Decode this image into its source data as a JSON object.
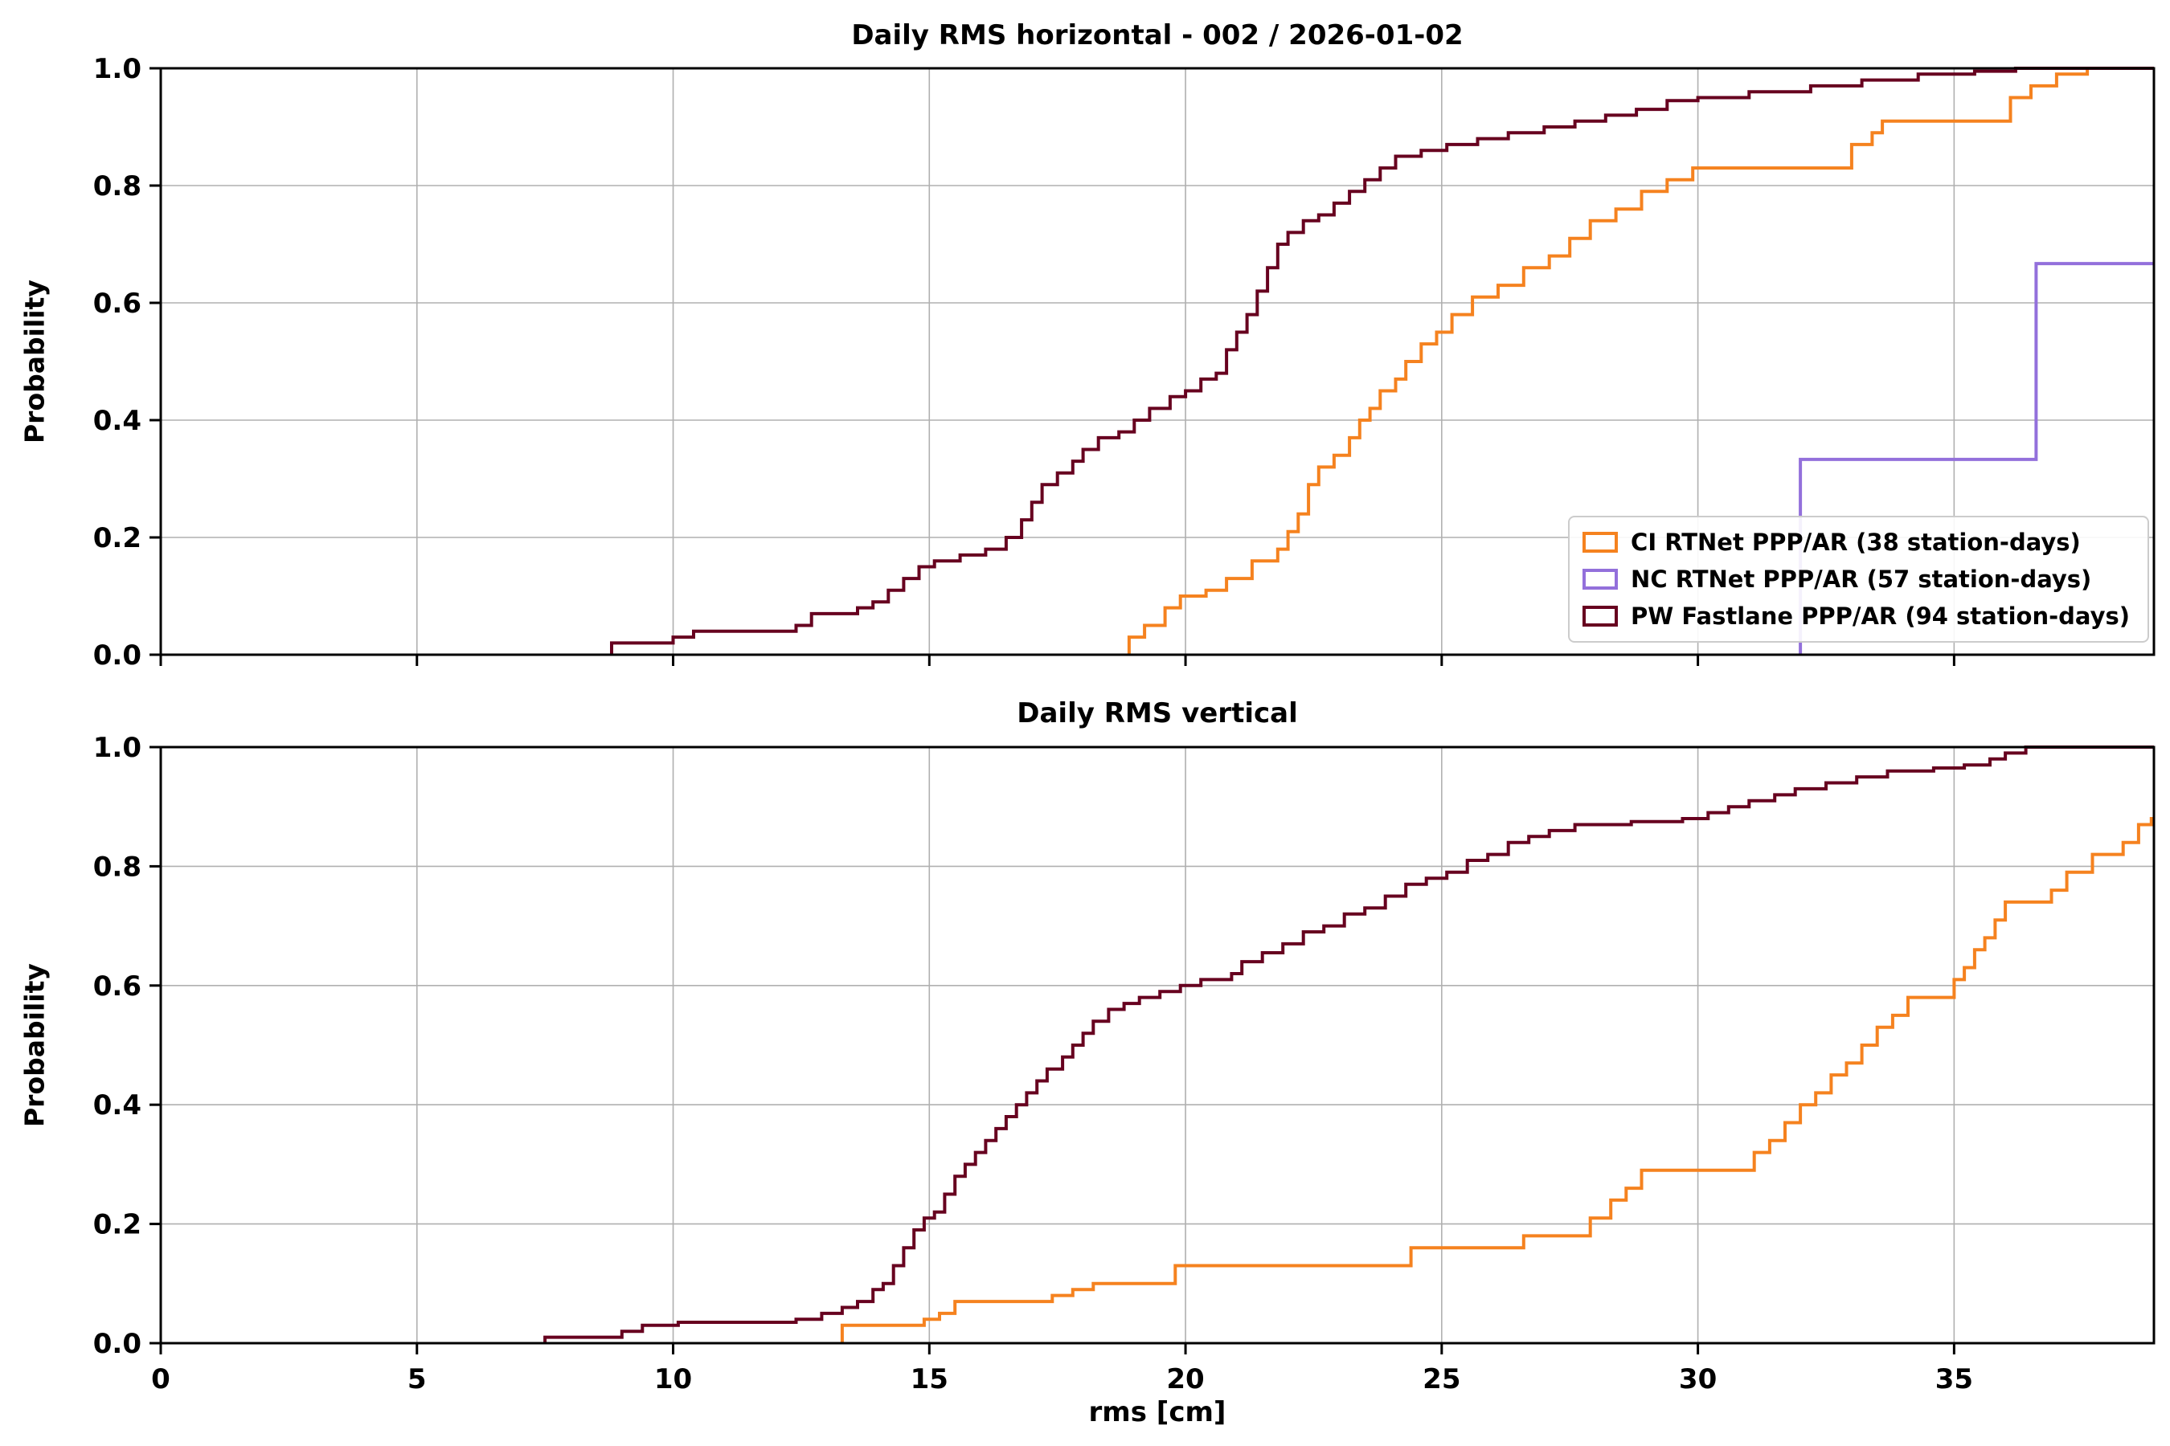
{
  "figure": {
    "background": "#ffffff",
    "grid_color": "#b0b0b0",
    "spine_color": "#000000"
  },
  "chart_data": [
    {
      "type": "line",
      "subtype": "ecdf-step",
      "title": "Daily RMS horizontal - 002  / 2026-01-02",
      "ylabel": "Probability",
      "xlabel": "",
      "xlim": [
        0,
        38.9
      ],
      "ylim": [
        0,
        1.0
      ],
      "xticks": [
        0,
        5,
        10,
        15,
        20,
        25,
        30,
        35
      ],
      "xtick_labels": [],
      "yticks": [
        0,
        0.2,
        0.4,
        0.6,
        0.8,
        1.0
      ],
      "ytick_labels": [
        "0.0",
        "0.2",
        "0.4",
        "0.6",
        "0.8",
        "1.0"
      ],
      "grid": true,
      "legend": {
        "position": "lower right",
        "entries": [
          {
            "label": "CI RTNet PPP/AR (38 station-days)",
            "color": "#f5821f"
          },
          {
            "label": "NC RTNet PPP/AR (57 station-days)",
            "color": "#9370db"
          },
          {
            "label": "PW Fastlane PPP/AR (94 station-days)",
            "color": "#67001f"
          }
        ]
      },
      "series": [
        {
          "name": "CI RTNet PPP/AR (38 station-days)",
          "color": "#f5821f",
          "points": [
            [
              18.9,
              0.03
            ],
            [
              19.2,
              0.05
            ],
            [
              19.6,
              0.08
            ],
            [
              19.9,
              0.1
            ],
            [
              20.4,
              0.11
            ],
            [
              20.8,
              0.13
            ],
            [
              21.3,
              0.16
            ],
            [
              21.8,
              0.18
            ],
            [
              22.0,
              0.21
            ],
            [
              22.2,
              0.24
            ],
            [
              22.4,
              0.29
            ],
            [
              22.6,
              0.32
            ],
            [
              22.9,
              0.34
            ],
            [
              23.2,
              0.37
            ],
            [
              23.4,
              0.4
            ],
            [
              23.6,
              0.42
            ],
            [
              23.8,
              0.45
            ],
            [
              24.1,
              0.47
            ],
            [
              24.3,
              0.5
            ],
            [
              24.6,
              0.53
            ],
            [
              24.9,
              0.55
            ],
            [
              25.2,
              0.58
            ],
            [
              25.6,
              0.61
            ],
            [
              26.1,
              0.63
            ],
            [
              26.6,
              0.66
            ],
            [
              27.1,
              0.68
            ],
            [
              27.5,
              0.71
            ],
            [
              27.9,
              0.74
            ],
            [
              28.4,
              0.76
            ],
            [
              28.9,
              0.79
            ],
            [
              29.4,
              0.81
            ],
            [
              29.9,
              0.83
            ],
            [
              33.0,
              0.87
            ],
            [
              33.4,
              0.89
            ],
            [
              33.6,
              0.91
            ],
            [
              36.1,
              0.95
            ],
            [
              36.5,
              0.97
            ],
            [
              37.0,
              0.99
            ],
            [
              37.6,
              1.0
            ]
          ]
        },
        {
          "name": "NC RTNet PPP/AR (57 station-days)",
          "color": "#9370db",
          "points": [
            [
              32.0,
              0.333
            ],
            [
              36.6,
              0.667
            ]
          ]
        },
        {
          "name": "PW Fastlane PPP/AR (94 station-days)",
          "color": "#67001f",
          "points": [
            [
              8.8,
              0.02
            ],
            [
              10.0,
              0.03
            ],
            [
              10.4,
              0.04
            ],
            [
              12.4,
              0.05
            ],
            [
              12.7,
              0.07
            ],
            [
              13.6,
              0.08
            ],
            [
              13.9,
              0.09
            ],
            [
              14.2,
              0.11
            ],
            [
              14.5,
              0.13
            ],
            [
              14.8,
              0.15
            ],
            [
              15.1,
              0.16
            ],
            [
              15.6,
              0.17
            ],
            [
              16.1,
              0.18
            ],
            [
              16.5,
              0.2
            ],
            [
              16.8,
              0.23
            ],
            [
              17.0,
              0.26
            ],
            [
              17.2,
              0.29
            ],
            [
              17.5,
              0.31
            ],
            [
              17.8,
              0.33
            ],
            [
              18.0,
              0.35
            ],
            [
              18.3,
              0.37
            ],
            [
              18.7,
              0.38
            ],
            [
              19.0,
              0.4
            ],
            [
              19.3,
              0.42
            ],
            [
              19.7,
              0.44
            ],
            [
              20.0,
              0.45
            ],
            [
              20.3,
              0.47
            ],
            [
              20.6,
              0.48
            ],
            [
              20.8,
              0.52
            ],
            [
              21.0,
              0.55
            ],
            [
              21.2,
              0.58
            ],
            [
              21.4,
              0.62
            ],
            [
              21.6,
              0.66
            ],
            [
              21.8,
              0.7
            ],
            [
              22.0,
              0.72
            ],
            [
              22.3,
              0.74
            ],
            [
              22.6,
              0.75
            ],
            [
              22.9,
              0.77
            ],
            [
              23.2,
              0.79
            ],
            [
              23.5,
              0.81
            ],
            [
              23.8,
              0.83
            ],
            [
              24.1,
              0.85
            ],
            [
              24.6,
              0.86
            ],
            [
              25.1,
              0.87
            ],
            [
              25.7,
              0.88
            ],
            [
              26.3,
              0.89
            ],
            [
              27.0,
              0.9
            ],
            [
              27.6,
              0.91
            ],
            [
              28.2,
              0.92
            ],
            [
              28.8,
              0.93
            ],
            [
              29.4,
              0.945
            ],
            [
              30.0,
              0.95
            ],
            [
              31.0,
              0.96
            ],
            [
              32.2,
              0.97
            ],
            [
              33.2,
              0.98
            ],
            [
              34.3,
              0.99
            ],
            [
              35.4,
              0.995
            ],
            [
              36.2,
              1.0
            ]
          ]
        }
      ]
    },
    {
      "type": "line",
      "subtype": "ecdf-step",
      "title": "Daily RMS vertical",
      "ylabel": "Probability",
      "xlabel": "rms [cm]",
      "xlim": [
        0,
        38.9
      ],
      "ylim": [
        0,
        1.0
      ],
      "xticks": [
        0,
        5,
        10,
        15,
        20,
        25,
        30,
        35
      ],
      "xtick_labels": [
        "0",
        "5",
        "10",
        "15",
        "20",
        "25",
        "30",
        "35"
      ],
      "yticks": [
        0,
        0.2,
        0.4,
        0.6,
        0.8,
        1.0
      ],
      "ytick_labels": [
        "0.0",
        "0.2",
        "0.4",
        "0.6",
        "0.8",
        "1.0"
      ],
      "grid": true,
      "series": [
        {
          "name": "CI RTNet PPP/AR (38 station-days)",
          "color": "#f5821f",
          "points": [
            [
              13.3,
              0.03
            ],
            [
              14.9,
              0.04
            ],
            [
              15.2,
              0.05
            ],
            [
              15.5,
              0.07
            ],
            [
              17.4,
              0.08
            ],
            [
              17.8,
              0.09
            ],
            [
              18.2,
              0.1
            ],
            [
              19.8,
              0.13
            ],
            [
              24.4,
              0.16
            ],
            [
              26.6,
              0.18
            ],
            [
              27.9,
              0.21
            ],
            [
              28.3,
              0.24
            ],
            [
              28.6,
              0.26
            ],
            [
              28.9,
              0.29
            ],
            [
              31.1,
              0.32
            ],
            [
              31.4,
              0.34
            ],
            [
              31.7,
              0.37
            ],
            [
              32.0,
              0.4
            ],
            [
              32.3,
              0.42
            ],
            [
              32.6,
              0.45
            ],
            [
              32.9,
              0.47
            ],
            [
              33.2,
              0.5
            ],
            [
              33.5,
              0.53
            ],
            [
              33.8,
              0.55
            ],
            [
              34.1,
              0.58
            ],
            [
              35.0,
              0.61
            ],
            [
              35.2,
              0.63
            ],
            [
              35.4,
              0.66
            ],
            [
              35.6,
              0.68
            ],
            [
              35.8,
              0.71
            ],
            [
              36.0,
              0.74
            ],
            [
              36.9,
              0.76
            ],
            [
              37.2,
              0.79
            ],
            [
              37.7,
              0.82
            ],
            [
              38.3,
              0.84
            ],
            [
              38.6,
              0.87
            ],
            [
              38.85,
              0.88
            ]
          ]
        },
        {
          "name": "NC RTNet PPP/AR (57 station-days)",
          "color": "#9370db",
          "points": []
        },
        {
          "name": "PW Fastlane PPP/AR (94 station-days)",
          "color": "#67001f",
          "points": [
            [
              7.5,
              0.01
            ],
            [
              9.0,
              0.02
            ],
            [
              9.4,
              0.03
            ],
            [
              10.1,
              0.035
            ],
            [
              12.4,
              0.04
            ],
            [
              12.9,
              0.05
            ],
            [
              13.3,
              0.06
            ],
            [
              13.6,
              0.07
            ],
            [
              13.9,
              0.09
            ],
            [
              14.1,
              0.1
            ],
            [
              14.3,
              0.13
            ],
            [
              14.5,
              0.16
            ],
            [
              14.7,
              0.19
            ],
            [
              14.9,
              0.21
            ],
            [
              15.1,
              0.22
            ],
            [
              15.3,
              0.25
            ],
            [
              15.5,
              0.28
            ],
            [
              15.7,
              0.3
            ],
            [
              15.9,
              0.32
            ],
            [
              16.1,
              0.34
            ],
            [
              16.3,
              0.36
            ],
            [
              16.5,
              0.38
            ],
            [
              16.7,
              0.4
            ],
            [
              16.9,
              0.42
            ],
            [
              17.1,
              0.44
            ],
            [
              17.3,
              0.46
            ],
            [
              17.6,
              0.48
            ],
            [
              17.8,
              0.5
            ],
            [
              18.0,
              0.52
            ],
            [
              18.2,
              0.54
            ],
            [
              18.5,
              0.56
            ],
            [
              18.8,
              0.57
            ],
            [
              19.1,
              0.58
            ],
            [
              19.5,
              0.59
            ],
            [
              19.9,
              0.6
            ],
            [
              20.3,
              0.61
            ],
            [
              20.9,
              0.62
            ],
            [
              21.1,
              0.64
            ],
            [
              21.5,
              0.655
            ],
            [
              21.9,
              0.67
            ],
            [
              22.3,
              0.69
            ],
            [
              22.7,
              0.7
            ],
            [
              23.1,
              0.72
            ],
            [
              23.5,
              0.73
            ],
            [
              23.9,
              0.75
            ],
            [
              24.3,
              0.77
            ],
            [
              24.7,
              0.78
            ],
            [
              25.1,
              0.79
            ],
            [
              25.5,
              0.81
            ],
            [
              25.9,
              0.82
            ],
            [
              26.3,
              0.84
            ],
            [
              26.7,
              0.85
            ],
            [
              27.1,
              0.86
            ],
            [
              27.6,
              0.87
            ],
            [
              28.7,
              0.875
            ],
            [
              29.7,
              0.88
            ],
            [
              30.2,
              0.89
            ],
            [
              30.6,
              0.9
            ],
            [
              31.0,
              0.91
            ],
            [
              31.5,
              0.92
            ],
            [
              31.9,
              0.93
            ],
            [
              32.5,
              0.94
            ],
            [
              33.1,
              0.95
            ],
            [
              33.7,
              0.96
            ],
            [
              34.6,
              0.965
            ],
            [
              35.2,
              0.97
            ],
            [
              35.7,
              0.98
            ],
            [
              36.0,
              0.99
            ],
            [
              36.4,
              1.0
            ]
          ]
        }
      ]
    }
  ]
}
